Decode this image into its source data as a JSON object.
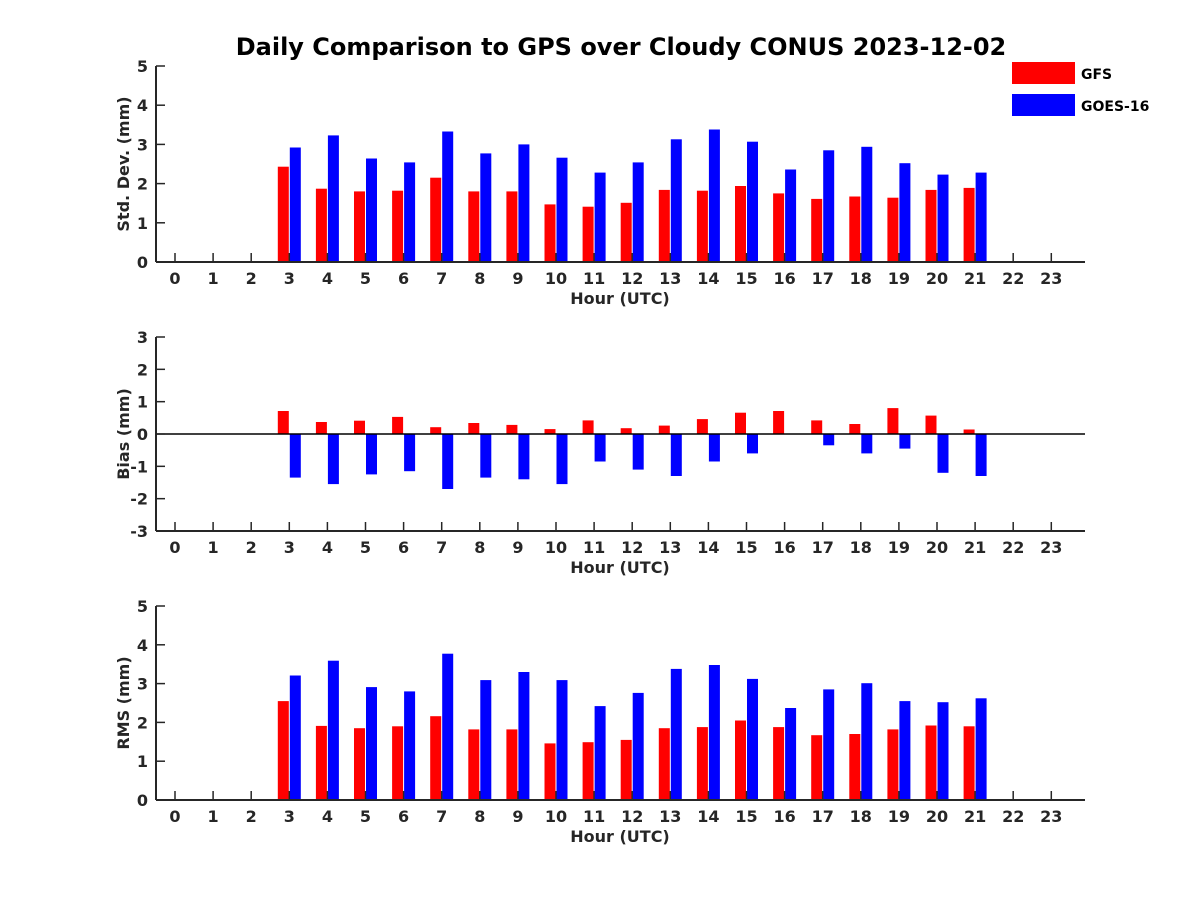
{
  "title": "Daily Comparison to GPS over Cloudy CONUS 2023-12-02",
  "legend": [
    {
      "name": "GFS",
      "color": "#ff0000"
    },
    {
      "name": "GOES-16",
      "color": "#0000ff"
    }
  ],
  "chart_data": [
    {
      "type": "bar",
      "ylabel": "Std. Dev. (mm)",
      "xlabel": "Hour (UTC)",
      "ylim": [
        0,
        5
      ],
      "yticks": [
        0,
        1,
        2,
        3,
        4,
        5
      ],
      "categories": [
        0,
        1,
        2,
        3,
        4,
        5,
        6,
        7,
        8,
        9,
        10,
        11,
        12,
        13,
        14,
        15,
        16,
        17,
        18,
        19,
        20,
        21,
        22,
        23
      ],
      "series": [
        {
          "name": "GFS",
          "color": "#ff0000",
          "values": [
            null,
            null,
            null,
            2.43,
            1.87,
            1.8,
            1.82,
            2.15,
            1.8,
            1.8,
            1.47,
            1.41,
            1.51,
            1.84,
            1.82,
            1.94,
            1.75,
            1.61,
            1.67,
            1.64,
            1.84,
            1.89,
            null,
            null
          ]
        },
        {
          "name": "GOES-16",
          "color": "#0000ff",
          "values": [
            null,
            null,
            null,
            2.92,
            3.23,
            2.64,
            2.54,
            3.33,
            2.77,
            3.0,
            2.66,
            2.28,
            2.54,
            3.13,
            3.38,
            3.07,
            2.36,
            2.85,
            2.94,
            2.52,
            2.23,
            2.28,
            null,
            null
          ]
        }
      ]
    },
    {
      "type": "bar",
      "ylabel": "Bias (mm)",
      "xlabel": "Hour (UTC)",
      "ylim": [
        -3,
        3
      ],
      "yticks": [
        -3,
        -2,
        -1,
        0,
        1,
        2,
        3
      ],
      "categories": [
        0,
        1,
        2,
        3,
        4,
        5,
        6,
        7,
        8,
        9,
        10,
        11,
        12,
        13,
        14,
        15,
        16,
        17,
        18,
        19,
        20,
        21,
        22,
        23
      ],
      "series": [
        {
          "name": "GFS",
          "color": "#ff0000",
          "values": [
            null,
            null,
            null,
            0.71,
            0.37,
            0.41,
            0.53,
            0.21,
            0.34,
            0.28,
            0.15,
            0.42,
            0.18,
            0.26,
            0.46,
            0.66,
            0.71,
            0.42,
            0.31,
            0.8,
            0.57,
            0.14,
            null,
            null
          ]
        },
        {
          "name": "GOES-16",
          "color": "#0000ff",
          "values": [
            null,
            null,
            null,
            -1.35,
            -1.55,
            -1.25,
            -1.15,
            -1.7,
            -1.35,
            -1.4,
            -1.55,
            -0.85,
            -1.1,
            -1.3,
            -0.85,
            -0.6,
            0,
            -0.35,
            -0.6,
            -0.45,
            -1.2,
            -1.3,
            null,
            null
          ]
        }
      ]
    },
    {
      "type": "bar",
      "ylabel": "RMS (mm)",
      "xlabel": "Hour (UTC)",
      "ylim": [
        0,
        5
      ],
      "yticks": [
        0,
        1,
        2,
        3,
        4,
        5
      ],
      "categories": [
        0,
        1,
        2,
        3,
        4,
        5,
        6,
        7,
        8,
        9,
        10,
        11,
        12,
        13,
        14,
        15,
        16,
        17,
        18,
        19,
        20,
        21,
        22,
        23
      ],
      "series": [
        {
          "name": "GFS",
          "color": "#ff0000",
          "values": [
            null,
            null,
            null,
            2.55,
            1.91,
            1.85,
            1.9,
            2.16,
            1.82,
            1.82,
            1.46,
            1.49,
            1.55,
            1.85,
            1.88,
            2.05,
            1.88,
            1.67,
            1.7,
            1.82,
            1.92,
            1.9,
            null,
            null
          ]
        },
        {
          "name": "GOES-16",
          "color": "#0000ff",
          "values": [
            null,
            null,
            null,
            3.21,
            3.59,
            2.91,
            2.8,
            3.77,
            3.09,
            3.3,
            3.09,
            2.42,
            2.76,
            3.38,
            3.48,
            3.12,
            2.37,
            2.85,
            3.01,
            2.55,
            2.52,
            2.62,
            null,
            null
          ]
        }
      ]
    }
  ]
}
